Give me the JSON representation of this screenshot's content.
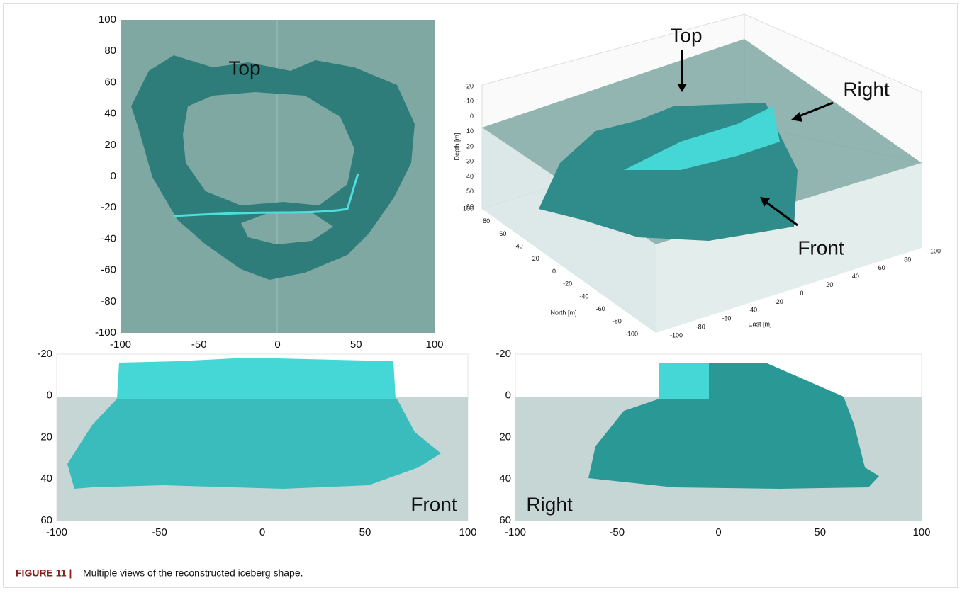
{
  "panels": [
    {
      "label": "Top",
      "xticks": [
        -100,
        -50,
        0,
        50,
        100
      ],
      "yticks": [
        100,
        80,
        60,
        40,
        20,
        0,
        -20,
        -40,
        -60,
        -80,
        -100
      ]
    },
    {
      "annotations": [
        "Top",
        "Right",
        "Front"
      ],
      "depth_label": "Depth [m]",
      "depth_ticks": [
        -20,
        -10,
        0,
        10,
        20,
        30,
        40,
        50,
        60
      ],
      "north_label": "North [m]",
      "north_ticks": [
        100,
        80,
        60,
        40,
        20,
        0,
        -20,
        -40,
        -60,
        -80,
        -100
      ],
      "east_label": "East [m]",
      "east_ticks": [
        -100,
        -80,
        -60,
        -40,
        -20,
        0,
        20,
        40,
        60,
        80,
        100
      ]
    },
    {
      "label": "Front",
      "xticks": [
        -100,
        -50,
        0,
        50,
        100
      ],
      "yticks": [
        -20,
        0,
        20,
        40,
        60
      ]
    },
    {
      "label": "Right",
      "xticks": [
        -100,
        -50,
        0,
        50,
        100
      ],
      "yticks": [
        -20,
        0,
        20,
        40,
        60
      ]
    }
  ],
  "caption": {
    "label": "FIGURE 11 |",
    "text": "Multiple views of the reconstructed iceberg shape."
  }
}
